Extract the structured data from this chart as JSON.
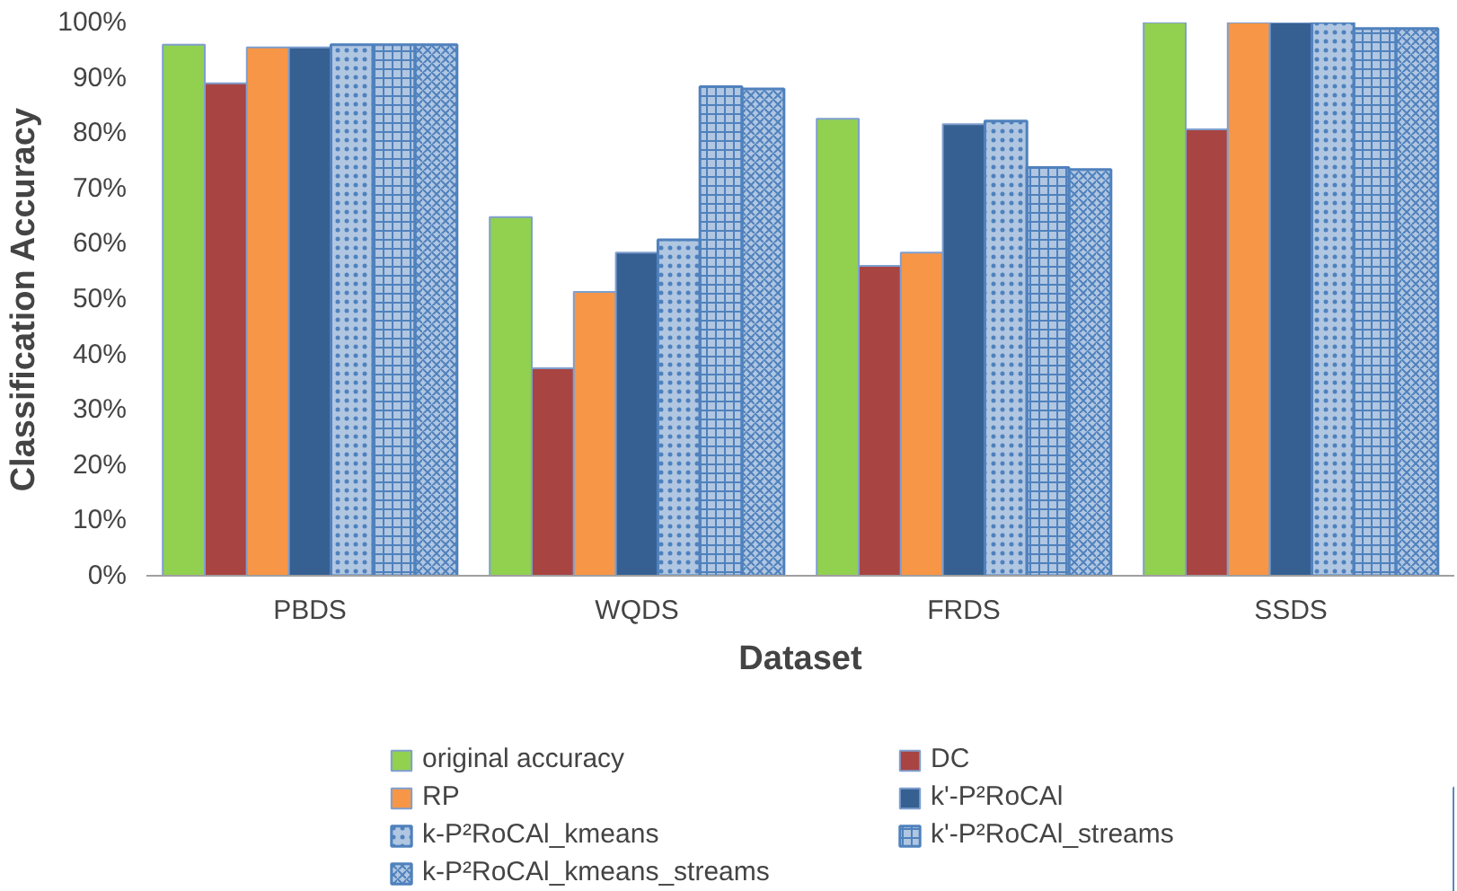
{
  "chart_data": {
    "type": "bar",
    "xlabel": "Dataset",
    "ylabel": "Classification Accuracy",
    "categories": [
      "PBDS",
      "WQDS",
      "FRDS",
      "SSDS"
    ],
    "series": [
      {
        "name": "original accuracy",
        "color": "#92d050",
        "values": [
          96,
          64.8,
          82.6,
          100
        ]
      },
      {
        "name": "DC",
        "color": "#a84442",
        "values": [
          89,
          37.5,
          56,
          80.7
        ]
      },
      {
        "name": "RP",
        "color": "#f79646",
        "values": [
          95.5,
          51.3,
          58.4,
          100
        ]
      },
      {
        "name": "k'-P²RoCAl",
        "color": "#366092",
        "values": [
          95.5,
          58.4,
          81.6,
          100
        ]
      },
      {
        "name": "k-P²RoCAl_kmeans",
        "color": "#4f81bd",
        "values": [
          96,
          60.7,
          82.2,
          100
        ]
      },
      {
        "name": "k'-P²RoCAl_streams",
        "color": "#4f81bd",
        "values": [
          96,
          88.4,
          73.8,
          98.9
        ]
      },
      {
        "name": "k-P²RoCAl_kmeans_streams",
        "color": "#4f81bd",
        "values": [
          96,
          88,
          73.4,
          98.9
        ]
      }
    ],
    "ylim": [
      0,
      100
    ],
    "yticks": [
      {
        "value": 0,
        "label": "0%"
      },
      {
        "value": 10,
        "label": "10%"
      },
      {
        "value": 20,
        "label": "20%"
      },
      {
        "value": 30,
        "label": "30%"
      },
      {
        "value": 40,
        "label": "40%"
      },
      {
        "value": 50,
        "label": "50%"
      },
      {
        "value": 60,
        "label": "60%"
      },
      {
        "value": 70,
        "label": "70%"
      },
      {
        "value": 80,
        "label": "80%"
      },
      {
        "value": 90,
        "label": "90%"
      },
      {
        "value": 100,
        "label": "100%"
      }
    ],
    "grid": false,
    "legend": "bottom"
  }
}
